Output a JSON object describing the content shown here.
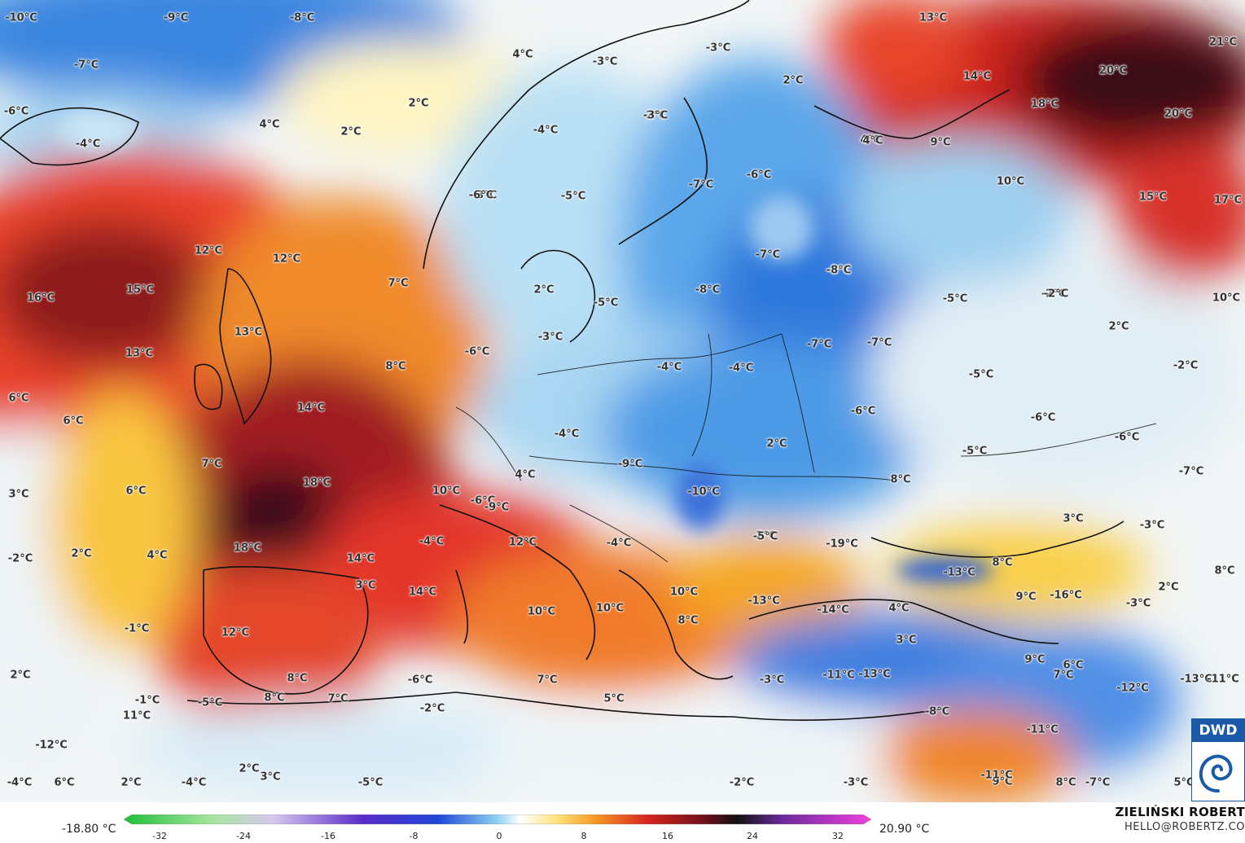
{
  "scale": {
    "min_label": "-18.80 °C",
    "max_label": "20.90 °C",
    "ticks": [
      "-32",
      "-24",
      "-16",
      "-8",
      "0",
      "8",
      "16",
      "24",
      "32"
    ]
  },
  "credits": {
    "author": "ZIELIŃSKI ROBERT",
    "email": "HELLO@ROBERTZ.CO"
  },
  "logo": {
    "text": "DWD",
    "icon": "dwd-swirl-icon"
  },
  "colors": {
    "cold": "#1f5fd6",
    "cool": "#8ec8f0",
    "neutral": "#f5f5f0",
    "warm": "#f5a623",
    "hot": "#d7261e",
    "veryhot": "#4a0f1a"
  },
  "labels": [
    {
      "t": "-10°C"
    },
    {
      "t": "-9°C"
    },
    {
      "t": "-8°C"
    },
    {
      "t": "-7°C"
    },
    {
      "t": "-6°C"
    },
    {
      "t": "-4°C"
    },
    {
      "t": "4°C"
    },
    {
      "t": "2°C"
    },
    {
      "t": "2°C"
    },
    {
      "t": "2°C"
    },
    {
      "t": "4°C"
    },
    {
      "t": "12°C"
    },
    {
      "t": "12°C"
    },
    {
      "t": "16°C"
    },
    {
      "t": "15°C"
    },
    {
      "t": "13°C"
    },
    {
      "t": "13°C"
    },
    {
      "t": "7°C"
    },
    {
      "t": "8°C"
    },
    {
      "t": "6°C"
    },
    {
      "t": "6°C"
    },
    {
      "t": "14°C"
    },
    {
      "t": "7°C"
    },
    {
      "t": "6°C"
    },
    {
      "t": "3°C"
    },
    {
      "t": "18°C"
    },
    {
      "t": "18°C"
    },
    {
      "t": "-2°C"
    },
    {
      "t": "2°C"
    },
    {
      "t": "4°C"
    },
    {
      "t": "14°C"
    },
    {
      "t": "-4°C"
    },
    {
      "t": "14°C"
    },
    {
      "t": "3°C"
    },
    {
      "t": "12°C"
    },
    {
      "t": "-1°C"
    },
    {
      "t": "2°C"
    },
    {
      "t": "-1°C"
    },
    {
      "t": "11°C"
    },
    {
      "t": "-5°C"
    },
    {
      "t": "8°C"
    },
    {
      "t": "8°C"
    },
    {
      "t": "7°C"
    },
    {
      "t": "-6°C"
    },
    {
      "t": "-2°C"
    },
    {
      "t": "-12°C"
    },
    {
      "t": "2°C"
    },
    {
      "t": "3°C"
    },
    {
      "t": "-4°C"
    },
    {
      "t": "6°C"
    },
    {
      "t": "2°C"
    },
    {
      "t": "-4°C"
    },
    {
      "t": "-5°C"
    },
    {
      "t": "-6°C"
    },
    {
      "t": "-3°C"
    },
    {
      "t": "-4°C"
    },
    {
      "t": "-3°C"
    },
    {
      "t": "-5°C"
    },
    {
      "t": "-5°C"
    },
    {
      "t": "2°C"
    },
    {
      "t": "-3°C"
    },
    {
      "t": "-6°C"
    },
    {
      "t": "-3°C"
    },
    {
      "t": "-3°C"
    },
    {
      "t": "2°C"
    },
    {
      "t": "4°C"
    },
    {
      "t": "-4°C"
    },
    {
      "t": "-4°C"
    },
    {
      "t": "-9°C"
    },
    {
      "t": "10°C"
    },
    {
      "t": "-9°C"
    },
    {
      "t": "12°C"
    },
    {
      "t": "4°C"
    },
    {
      "t": "-4°C"
    },
    {
      "t": "10°C"
    },
    {
      "t": "10°C"
    },
    {
      "t": "7°C"
    },
    {
      "t": "5°C"
    },
    {
      "t": "-10°C"
    },
    {
      "t": "10°C"
    },
    {
      "t": "8°C"
    },
    {
      "t": "2°C"
    },
    {
      "t": "-6°C"
    },
    {
      "t": "-6°C"
    },
    {
      "t": "-7°C"
    },
    {
      "t": "-8°C"
    },
    {
      "t": "-7°C"
    },
    {
      "t": "-8°C"
    },
    {
      "t": "-7°C"
    },
    {
      "t": "-7°C"
    },
    {
      "t": "-4°C"
    },
    {
      "t": "-6°C"
    },
    {
      "t": "2°C"
    },
    {
      "t": "8°C"
    },
    {
      "t": "-5°C"
    },
    {
      "t": "-13°C"
    },
    {
      "t": "-14°C"
    },
    {
      "t": "3°C"
    },
    {
      "t": "-11°C"
    },
    {
      "t": "-13°C"
    },
    {
      "t": "-3°C"
    },
    {
      "t": "9°C"
    },
    {
      "t": "-19°C"
    },
    {
      "t": "4°C"
    },
    {
      "t": "-13°C"
    },
    {
      "t": "8°C"
    },
    {
      "t": "-16°C"
    },
    {
      "t": "9°C"
    },
    {
      "t": "7°C"
    },
    {
      "t": "-8°C"
    },
    {
      "t": "-3°C"
    },
    {
      "t": "-5°C"
    },
    {
      "t": "-6°C"
    },
    {
      "t": "-5°C"
    },
    {
      "t": "-5°C"
    },
    {
      "t": "-6°C"
    },
    {
      "t": "-7°C"
    },
    {
      "t": "-2°C"
    },
    {
      "t": "-2°C"
    },
    {
      "t": "2°C"
    },
    {
      "t": "3°C"
    },
    {
      "t": "-3°C"
    },
    {
      "t": "2°C"
    },
    {
      "t": "-3°C"
    },
    {
      "t": "8°C"
    },
    {
      "t": "6°C"
    },
    {
      "t": "-12°C"
    },
    {
      "t": "-11°C"
    },
    {
      "t": "-13°C"
    },
    {
      "t": "9°C"
    },
    {
      "t": "8°C"
    },
    {
      "t": "-7°C"
    },
    {
      "t": "-11°C"
    },
    {
      "t": "5°C"
    },
    {
      "t": "-11°C"
    },
    {
      "t": "13°C"
    },
    {
      "t": "14°C"
    },
    {
      "t": "4°C"
    },
    {
      "t": "9°C"
    },
    {
      "t": "18°C"
    },
    {
      "t": "20°C"
    },
    {
      "t": "21°C"
    },
    {
      "t": "20°C"
    },
    {
      "t": "10°C"
    },
    {
      "t": "15°C"
    },
    {
      "t": "17°C"
    },
    {
      "t": "10°C"
    },
    {
      "t": "-2°C"
    },
    {
      "t": "-2°C"
    },
    {
      "t": "-8°C"
    }
  ]
}
